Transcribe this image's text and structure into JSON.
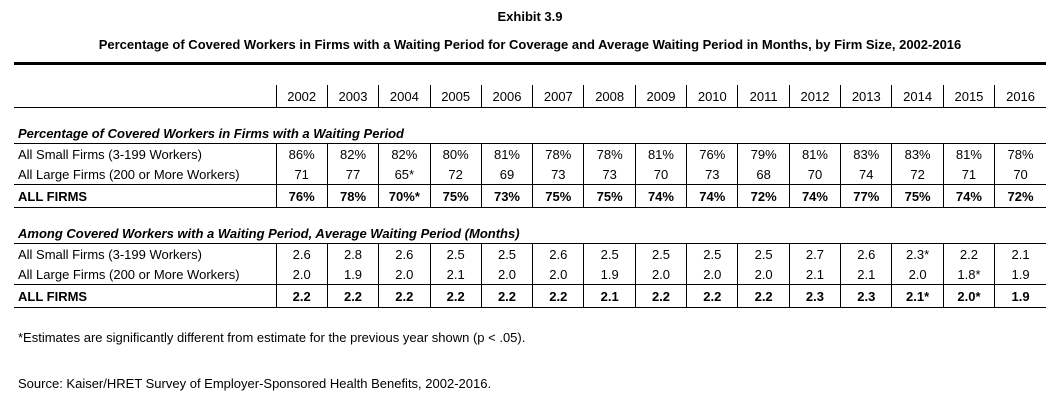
{
  "exhibit": "Exhibit 3.9",
  "title": "Percentage of Covered Workers in Firms with a Waiting Period for Coverage and Average Waiting Period in Months, by Firm Size, 2002-2016",
  "years": [
    "2002",
    "2003",
    "2004",
    "2005",
    "2006",
    "2007",
    "2008",
    "2009",
    "2010",
    "2011",
    "2012",
    "2013",
    "2014",
    "2015",
    "2016"
  ],
  "sections": [
    {
      "heading": "Percentage of Covered Workers in Firms with a Waiting Period",
      "rows": [
        {
          "label": "All Small Firms (3-199 Workers)",
          "values": [
            "86%",
            "82%",
            "82%",
            "80%",
            "81%",
            "78%",
            "78%",
            "81%",
            "76%",
            "79%",
            "81%",
            "83%",
            "83%",
            "81%",
            "78%"
          ]
        },
        {
          "label": "All Large Firms (200 or More Workers)",
          "values": [
            "71",
            "77",
            "65*",
            "72",
            "69",
            "73",
            "73",
            "70",
            "73",
            "68",
            "70",
            "74",
            "72",
            "71",
            "70"
          ]
        }
      ],
      "total": {
        "label": "ALL FIRMS",
        "values": [
          "76%",
          "78%",
          "70%*",
          "75%",
          "73%",
          "75%",
          "75%",
          "74%",
          "74%",
          "72%",
          "74%",
          "77%",
          "75%",
          "74%",
          "72%"
        ]
      }
    },
    {
      "heading": "Among Covered Workers with a Waiting Period, Average Waiting Period (Months)",
      "rows": [
        {
          "label": "All Small Firms (3-199 Workers)",
          "values": [
            "2.6",
            "2.8",
            "2.6",
            "2.5",
            "2.5",
            "2.6",
            "2.5",
            "2.5",
            "2.5",
            "2.5",
            "2.7",
            "2.6",
            "2.3*",
            "2.2",
            "2.1"
          ]
        },
        {
          "label": "All Large Firms (200 or More Workers)",
          "values": [
            "2.0",
            "1.9",
            "2.0",
            "2.1",
            "2.0",
            "2.0",
            "1.9",
            "2.0",
            "2.0",
            "2.0",
            "2.1",
            "2.1",
            "2.0",
            "1.8*",
            "1.9"
          ]
        }
      ],
      "total": {
        "label": "ALL FIRMS",
        "values": [
          "2.2",
          "2.2",
          "2.2",
          "2.2",
          "2.2",
          "2.2",
          "2.1",
          "2.2",
          "2.2",
          "2.2",
          "2.3",
          "2.3",
          "2.1*",
          "2.0*",
          "1.9"
        ]
      }
    }
  ],
  "note": "*Estimates are significantly different from estimate for the previous year shown (p < .05).",
  "source": "Source: Kaiser/HRET Survey of Employer-Sponsored Health Benefits, 2002-2016."
}
